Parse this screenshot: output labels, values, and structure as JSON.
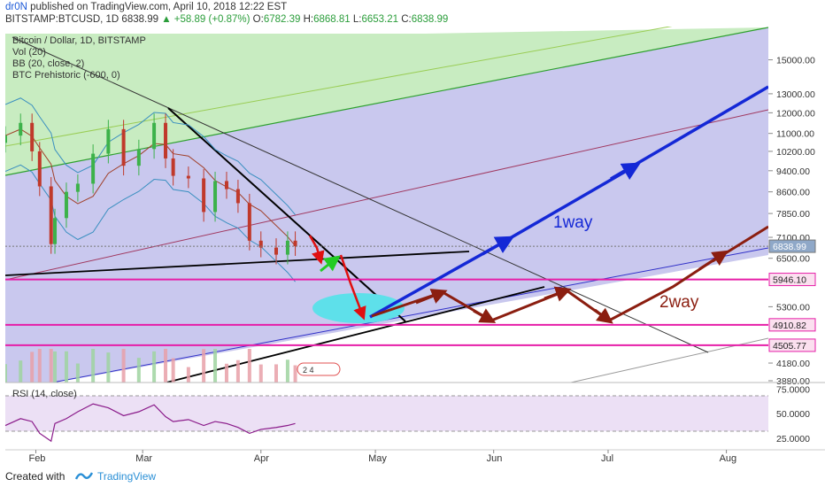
{
  "header": {
    "author": "dr0N",
    "published": "published on TradingView.com, April 10, 2018 12:22 EST",
    "symbol": "BITSTAMP:BTCUSD, 1D",
    "last": "6838.99",
    "change": "+58.89 (+0.87%)",
    "o_label": "O:",
    "o": "6782.39",
    "h_label": "H:",
    "h": "6868.81",
    "l_label": "L:",
    "l": "6653.21",
    "c_label": "C:",
    "c": "6838.99"
  },
  "legend": [
    "Bitcoin / Dollar, 1D, BITSTAMP",
    "Vol (20)",
    "BB (20, close, 2)",
    "BTC Prehistoric (-600, 0)"
  ],
  "annotations": {
    "way1": "1way",
    "way2": "2way"
  },
  "volume_badge": "2  4",
  "rsi_label": "RSI (14, close)",
  "footer": {
    "created_with": "Created with",
    "brand": "TradingView"
  },
  "colors": {
    "bg_band": "#c9c8ee",
    "green_band": "#c8ecc1",
    "magenta": "#e61ea8",
    "blue_arrow": "#1428d6",
    "brown_arrow": "#8b1e10",
    "red_arrow": "#e01010",
    "rsi_line": "#8a1a8a",
    "rsi_band": "#ece0f5"
  },
  "chart_data": [
    {
      "type": "line",
      "title": "Bitcoin / Dollar, 1D, BITSTAMP",
      "y_scale": "log",
      "ylim": [
        3880,
        16500
      ],
      "xlabels": [
        "Feb",
        "Mar",
        "Apr",
        "May",
        "Jun",
        "Jul",
        "Aug"
      ],
      "price_ticks": [
        "15000.00",
        "13000.00",
        "12000.00",
        "11000.00",
        "10200.00",
        "9400.00",
        "8600.00",
        "7850.00",
        "7100.00",
        "6500.00",
        "5946.10",
        "5300.00",
        "4910.82",
        "4505.77",
        "4180.00",
        "3880.00"
      ],
      "highlighted_levels": [
        {
          "value": 6838.99,
          "label": "6838.99"
        },
        {
          "value": 5946.1,
          "label": "5946.10"
        },
        {
          "value": 4910.82,
          "label": "4910.82"
        },
        {
          "value": 4505.77,
          "label": "4505.77"
        }
      ],
      "close_series_approx": [
        {
          "date": "2018-01-24",
          "close": 10900
        },
        {
          "date": "2018-01-28",
          "close": 11500
        },
        {
          "date": "2018-01-31",
          "close": 10200
        },
        {
          "date": "2018-02-02",
          "close": 8800
        },
        {
          "date": "2018-02-05",
          "close": 6900
        },
        {
          "date": "2018-02-06",
          "close": 7700
        },
        {
          "date": "2018-02-09",
          "close": 8600
        },
        {
          "date": "2018-02-12",
          "close": 8900
        },
        {
          "date": "2018-02-16",
          "close": 10100
        },
        {
          "date": "2018-02-20",
          "close": 11200
        },
        {
          "date": "2018-02-24",
          "close": 9600
        },
        {
          "date": "2018-02-28",
          "close": 10300
        },
        {
          "date": "2018-03-04",
          "close": 11500
        },
        {
          "date": "2018-03-07",
          "close": 9900
        },
        {
          "date": "2018-03-09",
          "close": 9200
        },
        {
          "date": "2018-03-13",
          "close": 9100
        },
        {
          "date": "2018-03-17",
          "close": 7900
        },
        {
          "date": "2018-03-20",
          "close": 9000
        },
        {
          "date": "2018-03-23",
          "close": 8700
        },
        {
          "date": "2018-03-26",
          "close": 8200
        },
        {
          "date": "2018-03-29",
          "close": 7000
        },
        {
          "date": "2018-04-01",
          "close": 6800
        },
        {
          "date": "2018-04-05",
          "close": 6600
        },
        {
          "date": "2018-04-08",
          "close": 7000
        },
        {
          "date": "2018-04-10",
          "close": 6839
        }
      ],
      "rsi": {
        "label": "RSI (14, close)",
        "ylim": [
          15,
          80
        ],
        "ticks": [
          "75.0000",
          "50.0000",
          "25.0000"
        ],
        "values_approx": [
          38,
          45,
          42,
          30,
          22,
          40,
          45,
          52,
          60,
          56,
          48,
          52,
          59,
          47,
          42,
          44,
          38,
          42,
          40,
          36,
          30,
          34,
          36,
          38,
          40
        ]
      }
    }
  ]
}
